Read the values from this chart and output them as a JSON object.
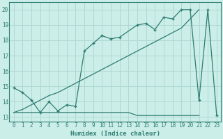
{
  "xlabel": "Humidex (Indice chaleur)",
  "background_color": "#cceee8",
  "grid_color": "#b0d8d4",
  "line_color": "#2e7d72",
  "xlim": [
    -0.5,
    23.5
  ],
  "ylim": [
    12.7,
    20.5
  ],
  "yticks": [
    13,
    14,
    15,
    16,
    17,
    18,
    19,
    20
  ],
  "xticks": [
    0,
    1,
    2,
    3,
    4,
    5,
    6,
    7,
    8,
    9,
    10,
    11,
    12,
    13,
    14,
    15,
    16,
    17,
    18,
    19,
    20,
    21,
    22,
    23
  ],
  "line_zigzag_x": [
    0,
    1,
    2,
    3,
    4,
    5,
    6,
    7,
    8,
    9,
    10,
    11,
    12,
    14,
    15,
    16,
    17,
    18,
    19,
    20,
    21,
    22,
    23
  ],
  "line_zigzag_y": [
    14.9,
    14.6,
    14.1,
    13.3,
    14.0,
    13.4,
    13.8,
    13.7,
    17.3,
    17.8,
    18.3,
    18.1,
    18.2,
    19.0,
    19.1,
    18.7,
    19.5,
    19.4,
    20.0,
    20.0,
    14.1,
    20.0,
    13.1
  ],
  "line_diag_x": [
    0,
    1,
    2,
    3,
    4,
    5,
    6,
    7,
    8,
    9,
    10,
    11,
    12,
    13,
    14,
    15,
    16,
    17,
    18,
    19,
    20,
    21
  ],
  "line_diag_y": [
    13.3,
    13.5,
    13.8,
    14.1,
    14.4,
    14.6,
    14.9,
    15.2,
    15.5,
    15.8,
    16.1,
    16.4,
    16.7,
    17.0,
    17.3,
    17.6,
    17.9,
    18.2,
    18.5,
    18.8,
    19.4,
    20.0
  ],
  "line_flat_x": [
    0,
    1,
    2,
    3,
    4,
    5,
    6,
    7,
    8,
    9,
    10,
    11,
    12,
    13,
    14,
    15,
    16,
    17,
    18,
    19,
    20,
    21
  ],
  "line_flat_y": [
    13.3,
    13.3,
    13.3,
    13.3,
    13.3,
    13.3,
    13.3,
    13.3,
    13.3,
    13.3,
    13.3,
    13.3,
    13.3,
    13.3,
    13.1,
    13.1,
    13.1,
    13.1,
    13.1,
    13.1,
    13.1,
    13.1
  ]
}
